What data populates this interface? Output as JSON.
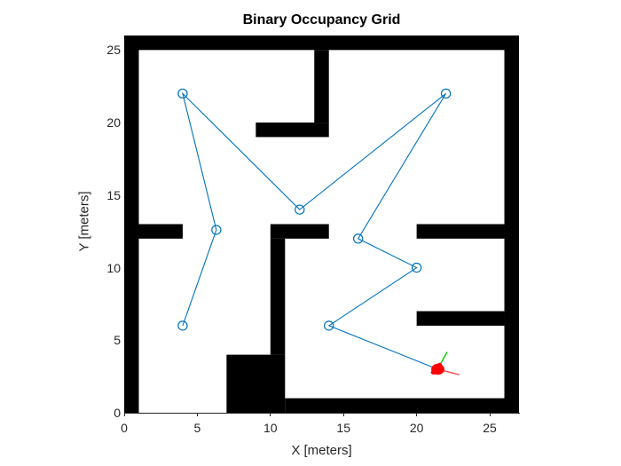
{
  "chart_data": {
    "type": "occupancy_grid_with_path",
    "title": "Binary Occupancy Grid",
    "xlabel": "X [meters]",
    "ylabel": "Y [meters]",
    "xlim": [
      0,
      27
    ],
    "ylim": [
      0,
      26
    ],
    "xticks": [
      0,
      5,
      10,
      15,
      20,
      25
    ],
    "yticks": [
      0,
      5,
      10,
      15,
      20,
      25
    ],
    "grid": false,
    "legend": null,
    "colors": {
      "occupied": "#000000",
      "free": "#ffffff",
      "path": "#0072bd",
      "axis_text": "#262626",
      "title_text": "#000000",
      "robot_body": "#ff0000",
      "robot_x_axis": "#ff4040",
      "robot_y_axis": "#00cf00"
    },
    "obstacles": [
      {
        "name": "border-top",
        "x": 0,
        "y": 25,
        "w": 27,
        "h": 1
      },
      {
        "name": "border-left",
        "x": 0,
        "y": 0,
        "w": 1,
        "h": 26
      },
      {
        "name": "border-right",
        "x": 26,
        "y": 0,
        "w": 1,
        "h": 26
      },
      {
        "name": "border-bottom-right",
        "x": 11,
        "y": 0,
        "w": 16,
        "h": 1
      },
      {
        "name": "bottom-block",
        "x": 7,
        "y": 0,
        "w": 4,
        "h": 4
      },
      {
        "name": "center-vertical-wall",
        "x": 10,
        "y": 4,
        "w": 1,
        "h": 8
      },
      {
        "name": "center-top-arm",
        "x": 10,
        "y": 12,
        "w": 4,
        "h": 1
      },
      {
        "name": "left-stub-wall",
        "x": 1,
        "y": 12,
        "w": 3,
        "h": 1
      },
      {
        "name": "right-stub-upper",
        "x": 20,
        "y": 12,
        "w": 6,
        "h": 1
      },
      {
        "name": "right-stub-lower",
        "x": 20,
        "y": 6,
        "w": 6,
        "h": 1
      },
      {
        "name": "top-vertical-wall",
        "x": 13,
        "y": 20,
        "w": 1,
        "h": 5
      },
      {
        "name": "top-left-arm",
        "x": 9,
        "y": 19,
        "w": 5,
        "h": 1
      }
    ],
    "path_points": [
      [
        4,
        6
      ],
      [
        6.3,
        12.6
      ],
      [
        4,
        22
      ],
      [
        12,
        14
      ],
      [
        22,
        22
      ],
      [
        16,
        12
      ],
      [
        20,
        10
      ],
      [
        14,
        6
      ],
      [
        21.45,
        3
      ]
    ],
    "waypoints": [
      [
        4,
        6
      ],
      [
        6.3,
        12.6
      ],
      [
        4,
        22
      ],
      [
        12,
        14
      ],
      [
        22,
        22
      ],
      [
        16,
        12
      ],
      [
        20,
        10
      ],
      [
        14,
        6
      ]
    ],
    "waypoint_marker": "open-circle",
    "robot": {
      "center": [
        21.45,
        3.0
      ],
      "body_rx": 0.45,
      "body_ry": 0.38,
      "x_axis": [
        [
          21.45,
          3.0
        ],
        [
          22.92,
          2.62
        ]
      ],
      "y_axis": [
        [
          21.6,
          3.3
        ],
        [
          22.08,
          4.18
        ]
      ]
    }
  }
}
